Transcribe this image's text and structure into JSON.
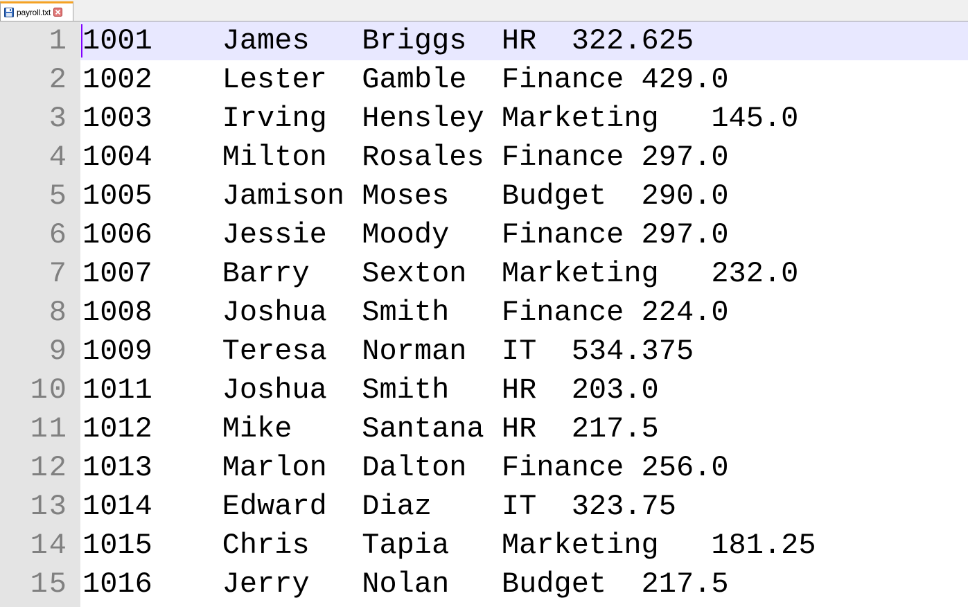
{
  "tab": {
    "title": "payroll.txt",
    "icon": "save-icon",
    "close_icon": "close-icon"
  },
  "colors": {
    "current_line": "#e8e8ff",
    "gutter": "#e4e4e4",
    "line_number": "#808080",
    "caret": "#8000ff",
    "tab_accent": "#f4a224"
  },
  "editor": {
    "current_line": 1,
    "lines": [
      {
        "number": "1",
        "text": "1001    James   Briggs  HR  322.625"
      },
      {
        "number": "2",
        "text": "1002    Lester  Gamble  Finance 429.0"
      },
      {
        "number": "3",
        "text": "1003    Irving  Hensley Marketing   145.0"
      },
      {
        "number": "4",
        "text": "1004    Milton  Rosales Finance 297.0"
      },
      {
        "number": "5",
        "text": "1005    Jamison Moses   Budget  290.0"
      },
      {
        "number": "6",
        "text": "1006    Jessie  Moody   Finance 297.0"
      },
      {
        "number": "7",
        "text": "1007    Barry   Sexton  Marketing   232.0"
      },
      {
        "number": "8",
        "text": "1008    Joshua  Smith   Finance 224.0"
      },
      {
        "number": "9",
        "text": "1009    Teresa  Norman  IT  534.375"
      },
      {
        "number": "10",
        "text": "1011    Joshua  Smith   HR  203.0"
      },
      {
        "number": "11",
        "text": "1012    Mike    Santana HR  217.5"
      },
      {
        "number": "12",
        "text": "1013    Marlon  Dalton  Finance 256.0"
      },
      {
        "number": "13",
        "text": "1014    Edward  Diaz    IT  323.75"
      },
      {
        "number": "14",
        "text": "1015    Chris   Tapia   Marketing   181.25"
      },
      {
        "number": "15",
        "text": "1016    Jerry   Nolan   Budget  217.5"
      }
    ]
  }
}
